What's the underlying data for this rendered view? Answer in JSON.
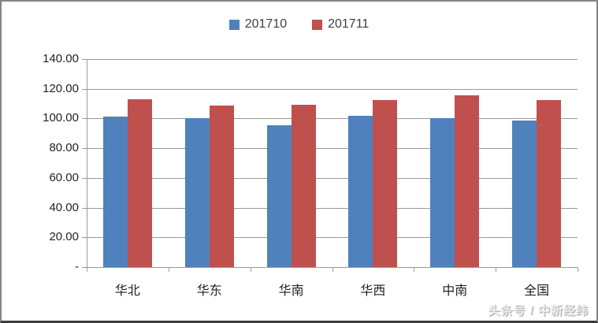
{
  "frame": {
    "background": "#ffffff",
    "border_color": "#858585",
    "bottom_border_color": "#3d3d3d"
  },
  "chart_data": {
    "type": "bar",
    "title": "",
    "xlabel": "",
    "ylabel": "",
    "categories": [
      "华北",
      "华东",
      "华南",
      "华西",
      "中南",
      "全国"
    ],
    "series": [
      {
        "name": "201710",
        "color": "#4F81BD",
        "values": [
          101.3,
          100.0,
          95.5,
          101.6,
          100.0,
          98.6
        ]
      },
      {
        "name": "201711",
        "color": "#C0504D",
        "values": [
          112.9,
          108.7,
          109.2,
          112.4,
          115.4,
          112.2
        ]
      }
    ],
    "ylim": [
      0,
      140
    ],
    "ytick_step": 20,
    "ytick_labels": [
      "-",
      "20.00",
      "40.00",
      "60.00",
      "80.00",
      "100.00",
      "120.00",
      "140.00"
    ],
    "grid": true,
    "gridline_color": "#9a9a9a",
    "axis_color": "#9a9a9a",
    "text_color": "#222222",
    "legend_position": "top-center"
  },
  "watermark": {
    "text": "头条号 / 中新经纬"
  }
}
